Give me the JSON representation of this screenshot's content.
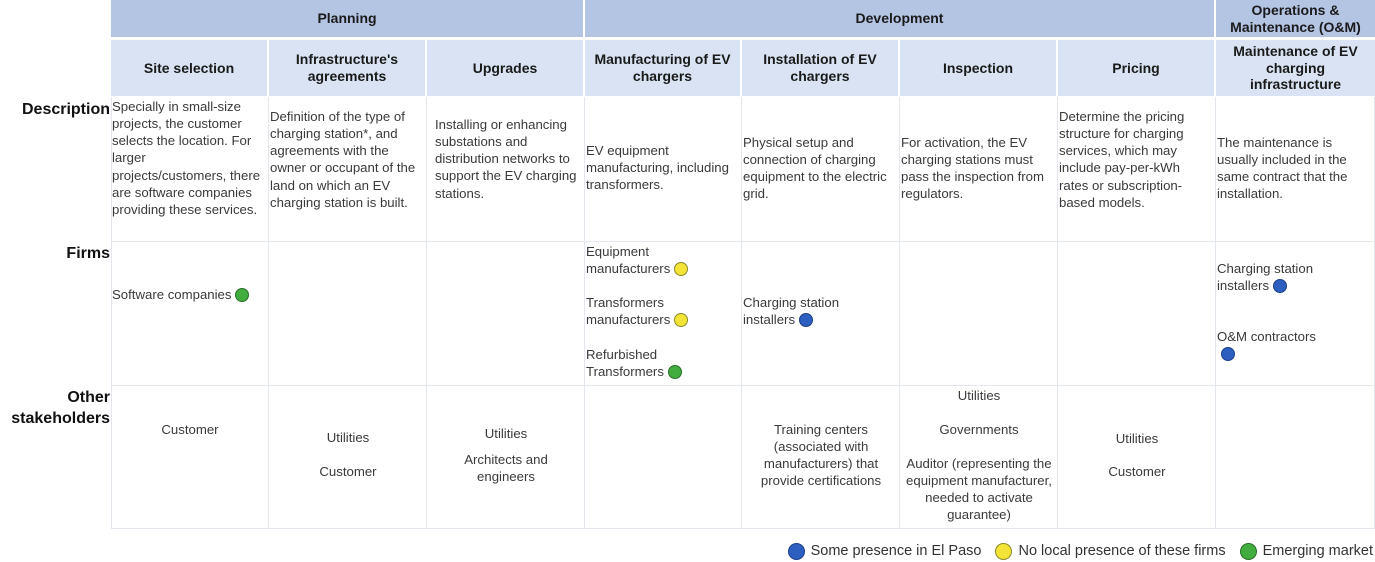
{
  "phases": {
    "planning": "Planning",
    "development": "Development",
    "om": "Operations & Maintenance (O&M)"
  },
  "columns": [
    "Site selection",
    "Infrastructure's agreements",
    "Upgrades",
    "Manufacturing of EV chargers",
    "Installation of EV chargers",
    "Inspection",
    "Pricing",
    "Maintenance of EV charging infrastructure"
  ],
  "row_labels": {
    "description": "Description",
    "firms": "Firms",
    "other": "Other stakeholders"
  },
  "descriptions": [
    "Specially in small-size projects, the customer selects the location. For larger projects/customers, there are software companies providing these services.",
    "Definition of the type of charging station*, and agreements with the owner or occupant of the land on which an EV charging station is built.",
    "Installing or enhancing substations and distribution networks to support the EV charging stations.",
    "EV equipment manufacturing, including transformers.",
    "Physical setup and connection of charging equipment to the electric grid.",
    "For activation, the EV charging stations must pass the inspection from regulators.",
    "Determine the pricing structure for charging services, which may include pay-per-kWh rates or subscription-based models.",
    "The maintenance is usually included in the same contract that the installation."
  ],
  "firms": {
    "site_selection": [
      {
        "text": "Software companies",
        "status": "green"
      }
    ],
    "manufacturing": [
      {
        "text": "Equipment manufacturers",
        "status": "yellow"
      },
      {
        "text": "Transformers manufacturers",
        "status": "yellow"
      },
      {
        "text": "Refurbished Transformers",
        "status": "green"
      }
    ],
    "installation": [
      {
        "text": "Charging station installers",
        "status": "blue"
      }
    ],
    "maintenance": [
      {
        "text": "Charging station installers",
        "status": "blue"
      },
      {
        "text": "O&M contractors",
        "status": "blue"
      }
    ]
  },
  "other": {
    "site_selection": [
      "Customer"
    ],
    "agreements": [
      "Utilities",
      "Customer"
    ],
    "upgrades": [
      "Utilities",
      "Architects and engineers"
    ],
    "installation": [
      "Training centers (associated with manufacturers) that provide certifications"
    ],
    "inspection": [
      "Utilities",
      "Governments",
      "Auditor (representing the equipment manufacturer, needed to activate guarantee)"
    ],
    "pricing": [
      "Utilities",
      "Customer"
    ]
  },
  "legend": [
    {
      "label": "Some presence in El Paso",
      "color": "#2d5fc0"
    },
    {
      "label": "No local presence of these firms",
      "color": "#f4e437"
    },
    {
      "label": "Emerging market",
      "color": "#42ad3f"
    }
  ]
}
